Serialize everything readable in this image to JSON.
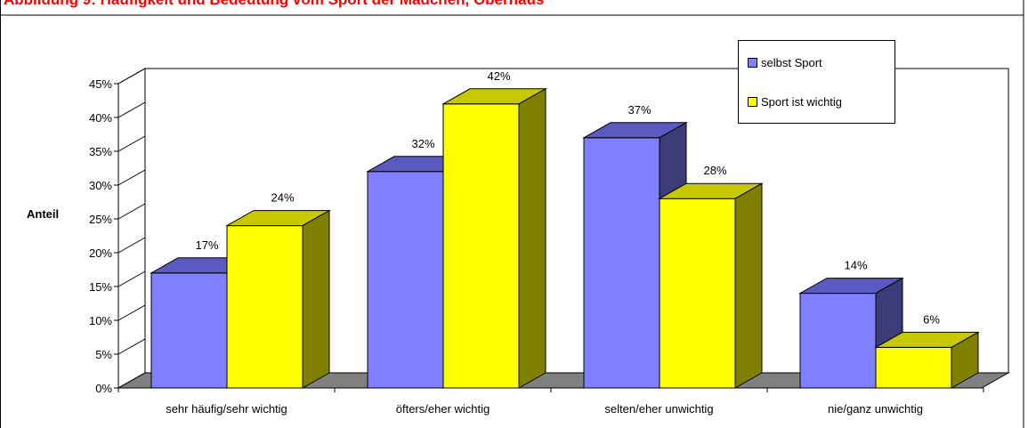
{
  "chart_data": {
    "type": "bar",
    "title": "Abbildung 9: Häufigkeit und Bedeutung vom Sport der Mädchen, Oberhaus",
    "ylabel": "Anteil",
    "xlabel": "",
    "ylim": [
      0,
      45
    ],
    "y_ticks": [
      "0%",
      "5%",
      "10%",
      "15%",
      "20%",
      "25%",
      "30%",
      "35%",
      "40%",
      "45%"
    ],
    "categories": [
      "sehr häufig/sehr wichtig",
      "öfters/eher wichtig",
      "selten/eher unwichtig",
      "nie/ganz unwichtig"
    ],
    "series": [
      {
        "name": "selbst Sport",
        "values": [
          17,
          32,
          37,
          14
        ],
        "labels": [
          "17%",
          "32%",
          "37%",
          "14%"
        ],
        "color": "#8080ff",
        "top_color": "#5a5ac0",
        "side_color": "#3c3c78"
      },
      {
        "name": "Sport ist wichtig",
        "values": [
          24,
          42,
          28,
          6
        ],
        "labels": [
          "24%",
          "42%",
          "28%",
          "6%"
        ],
        "color": "#ffff00",
        "top_color": "#c8c800",
        "side_color": "#808000"
      }
    ],
    "legend_position": "top-right",
    "grid": false
  }
}
